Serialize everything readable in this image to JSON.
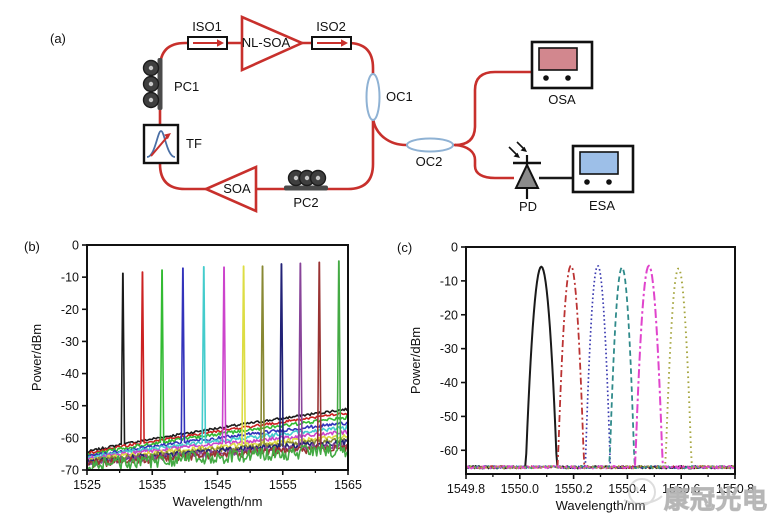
{
  "panel_a": {
    "label": "(a)",
    "components": {
      "iso1": "ISO1",
      "nl_soa": "NL-SOA",
      "iso2": "ISO2",
      "pc1": "PC1",
      "tf": "TF",
      "soa": "SOA",
      "pc2": "PC2",
      "oc1": "OC1",
      "oc2": "OC2",
      "osa": "OSA",
      "pd": "PD",
      "esa": "ESA"
    },
    "colors": {
      "fiber": "#c8302c",
      "electrical": "#1a1a1a",
      "coupler_outline": "#8fb2d4",
      "osa_screen": "#d2878e",
      "esa_screen": "#9dbfe8",
      "pd_fill": "#8a8a8a",
      "coil_dark": "#3f3f3f"
    }
  },
  "watermark": {
    "text": "康冠光电"
  },
  "chart_data": [
    {
      "id": "b",
      "type": "line",
      "panel_label": "(b)",
      "title": "",
      "xlabel": "Wavelength/nm",
      "ylabel": "Power/dBm",
      "xlim": [
        1525,
        1565
      ],
      "ylim": [
        -70,
        0
      ],
      "grid": false,
      "legend": "none",
      "xticks": [
        1525,
        1535,
        1545,
        1555,
        1565
      ],
      "xtick_labels": [
        "1525",
        "1535",
        "1545",
        "1555",
        "1565"
      ],
      "xminor": [
        1530,
        1540,
        1550,
        1560
      ],
      "yticks": [
        0,
        -10,
        -20,
        -30,
        -40,
        -50,
        -60,
        -70
      ],
      "ytick_labels": [
        "0",
        "-10",
        "-20",
        "-30",
        "-40",
        "-50",
        "-60",
        "-70"
      ],
      "description": "Twelve tunable single-wavelength lasing spectra, ~3 nm spacing, each with rising ASE floor",
      "series": [
        {
          "name": "line-1530.5nm",
          "color": "#1a1a1a",
          "peak_nm": 1530.5,
          "peak_dbm": -8.8,
          "floor_start_dbm": -64.5,
          "floor_end_dbm": -51.0,
          "noise_db": 0.4
        },
        {
          "name": "line-1533.5nm",
          "color": "#cc2222",
          "peak_nm": 1533.5,
          "peak_dbm": -8.4,
          "floor_start_dbm": -65.0,
          "floor_end_dbm": -52.3,
          "noise_db": 0.4
        },
        {
          "name": "line-1536.5nm",
          "color": "#33bb33",
          "peak_nm": 1536.5,
          "peak_dbm": -7.8,
          "floor_start_dbm": -65.5,
          "floor_end_dbm": -53.6,
          "noise_db": 0.5
        },
        {
          "name": "line-1539.7nm",
          "color": "#3333bb",
          "peak_nm": 1539.7,
          "peak_dbm": -7.2,
          "floor_start_dbm": -66.0,
          "floor_end_dbm": -55.3,
          "noise_db": 0.5
        },
        {
          "name": "line-1542.9nm",
          "color": "#44cccc",
          "peak_nm": 1542.9,
          "peak_dbm": -6.8,
          "floor_start_dbm": -66.3,
          "floor_end_dbm": -56.8,
          "noise_db": 0.6
        },
        {
          "name": "line-1546.0nm",
          "color": "#cc44cc",
          "peak_nm": 1546.0,
          "peak_dbm": -6.9,
          "floor_start_dbm": -66.6,
          "floor_end_dbm": -58.2,
          "noise_db": 0.6
        },
        {
          "name": "line-1549.0nm",
          "color": "#dddd44",
          "peak_nm": 1549.0,
          "peak_dbm": -6.6,
          "floor_start_dbm": -67.0,
          "floor_end_dbm": -59.6,
          "noise_db": 0.7
        },
        {
          "name": "line-1551.9nm",
          "color": "#888833",
          "peak_nm": 1551.9,
          "peak_dbm": -6.6,
          "floor_start_dbm": -67.3,
          "floor_end_dbm": -60.6,
          "noise_db": 0.8
        },
        {
          "name": "line-1554.8nm",
          "color": "#222277",
          "peak_nm": 1554.8,
          "peak_dbm": -5.9,
          "floor_start_dbm": -67.6,
          "floor_end_dbm": -61.4,
          "noise_db": 0.9
        },
        {
          "name": "line-1557.7nm",
          "color": "#884499",
          "peak_nm": 1557.7,
          "peak_dbm": -5.7,
          "floor_start_dbm": -68.0,
          "floor_end_dbm": -62.2,
          "noise_db": 1.0
        },
        {
          "name": "line-1560.6nm",
          "color": "#993333",
          "peak_nm": 1560.6,
          "peak_dbm": -5.4,
          "floor_start_dbm": -68.3,
          "floor_end_dbm": -62.9,
          "noise_db": 1.2
        },
        {
          "name": "line-1563.6nm",
          "color": "#44aa44",
          "peak_nm": 1563.6,
          "peak_dbm": -5.0,
          "floor_start_dbm": -68.6,
          "floor_end_dbm": -63.8,
          "noise_db": 2.2
        }
      ]
    },
    {
      "id": "c",
      "type": "line",
      "panel_label": "(c)",
      "title": "",
      "xlabel": "Wavelength/nm",
      "ylabel": "Power/dBm",
      "xlim": [
        1549.8,
        1550.8
      ],
      "ylim": [
        -67,
        0
      ],
      "grid": false,
      "legend": "none",
      "xticks": [
        1549.8,
        1550.0,
        1550.2,
        1550.4,
        1550.6,
        1550.8
      ],
      "xtick_labels": [
        "1549.8",
        "1550.0",
        "1550.2",
        "1550.4",
        "1550.6",
        "1550.8"
      ],
      "xminor": [
        1549.9,
        1550.1,
        1550.3,
        1550.5,
        1550.7
      ],
      "yticks": [
        0,
        -10,
        -20,
        -30,
        -40,
        -50,
        -60
      ],
      "ytick_labels": [
        "0",
        "-10",
        "-20",
        "-30",
        "-40",
        "-50",
        "-60"
      ],
      "baseline_dbm": -65,
      "description": "Fine-tuned lasing spectra near 1550 nm, ~0.1 nm steps",
      "series": [
        {
          "name": "curve-1550.08nm",
          "color": "#1a1a1a",
          "style": "solid",
          "center_nm": 1550.08,
          "peak_dbm": -5.8,
          "width44_nm": 0.05,
          "base_dbm": -65,
          "stroke_px": 2.0,
          "shoulder": {
            "offset_nm": -0.028,
            "peak_dbm": -32,
            "width44_nm": 0.03
          }
        },
        {
          "name": "curve-1550.19nm",
          "color": "#bb3333",
          "style": "dash-dot",
          "center_nm": 1550.19,
          "peak_dbm": -5.5,
          "width44_nm": 0.042,
          "base_dbm": -65,
          "stroke_px": 1.8
        },
        {
          "name": "curve-1550.29nm",
          "color": "#3a3ab0",
          "style": "dotted",
          "center_nm": 1550.29,
          "peak_dbm": -5.5,
          "width44_nm": 0.04,
          "base_dbm": -65,
          "stroke_px": 1.7
        },
        {
          "name": "curve-1550.38nm",
          "color": "#2f8a8a",
          "style": "dashed",
          "center_nm": 1550.38,
          "peak_dbm": -6.0,
          "width44_nm": 0.04,
          "base_dbm": -65,
          "stroke_px": 1.8
        },
        {
          "name": "curve-1550.48nm",
          "color": "#e044cc",
          "style": "long-dash-dot",
          "center_nm": 1550.48,
          "peak_dbm": -5.5,
          "width44_nm": 0.044,
          "base_dbm": -65,
          "stroke_px": 2.0
        },
        {
          "name": "curve-1550.59nm",
          "color": "#a6a640",
          "style": "sparse-dotted",
          "center_nm": 1550.59,
          "peak_dbm": -6.3,
          "width44_nm": 0.042,
          "base_dbm": -65,
          "stroke_px": 1.9
        }
      ]
    }
  ]
}
